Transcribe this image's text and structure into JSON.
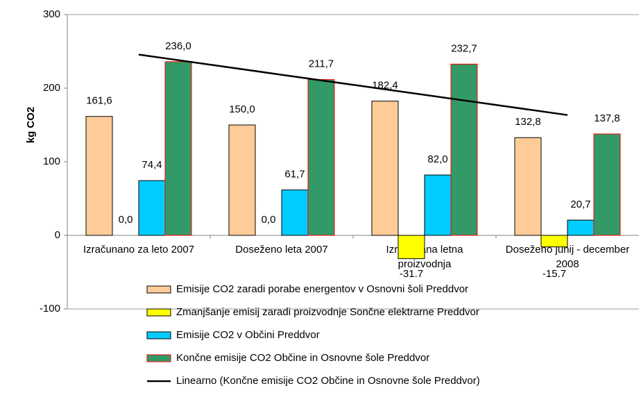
{
  "chart_data": {
    "type": "bar",
    "y_label": "kg CO2",
    "categories": [
      "Izračunano za leto 2007",
      "Doseženo leta 2007",
      "Izračunana letna proizvodnja",
      "Doseženo junij - december 2008"
    ],
    "ylim": [
      -100,
      300
    ],
    "yticks": [
      -100,
      0,
      100,
      200,
      300
    ],
    "grid": false,
    "series": [
      {
        "name": "Emisije CO2 zaradi porabe energentov v Osnovni šoli Preddvor",
        "color": "#FFCC99",
        "stroke": "#000000",
        "values": [
          161.6,
          150.0,
          182.4,
          132.8
        ],
        "value_labels": [
          "161,6",
          "150,0",
          "182,4",
          "132,8"
        ]
      },
      {
        "name": "Zmanjšanje emisij zaradi proizvodnje Sončne elektrarne Preddvor",
        "color": "#FFFF00",
        "stroke": "#000000",
        "values": [
          0.0,
          0.0,
          -31.7,
          -15.7
        ],
        "value_labels": [
          "0,0",
          "0,0",
          "-31.7",
          "-15.7"
        ]
      },
      {
        "name": "Emisije CO2 v Občini Preddvor",
        "color": "#00CCFF",
        "stroke": "#000000",
        "values": [
          74.4,
          61.7,
          82.0,
          20.7
        ],
        "value_labels": [
          "74,4",
          "61,7",
          "82,0",
          "20,7"
        ]
      },
      {
        "name": "Končne emisije CO2 Občine in Osnovne šole Preddvor",
        "color": "#339966",
        "stroke": "#FF0000",
        "values": [
          236.0,
          211.7,
          232.7,
          137.8
        ],
        "value_labels": [
          "236,0",
          "211,7",
          "232,7",
          "137,8"
        ]
      },
      {
        "name": "Linearno (Končne emisije CO2 Občine in Osnovne šole Preddvor)",
        "type": "line",
        "color": "#000000",
        "values": [
          245.6,
          218.2,
          190.9,
          163.5
        ]
      }
    ]
  }
}
